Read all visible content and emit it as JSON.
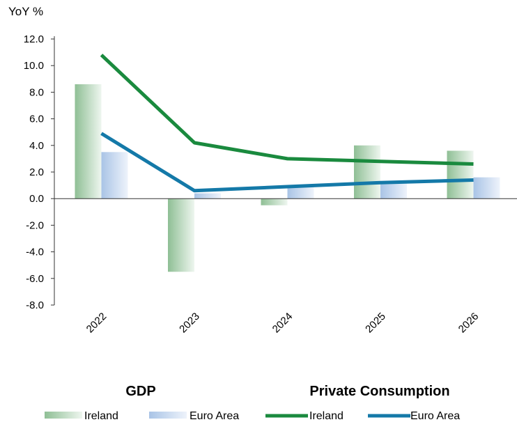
{
  "chart_data": {
    "type": "bar",
    "ylabel": "YoY %",
    "categories": [
      "2022",
      "2023",
      "2024",
      "2025",
      "2026"
    ],
    "ylim": [
      -8.0,
      12.0
    ],
    "yticks": [
      "12.0",
      "10.0",
      "8.0",
      "6.0",
      "4.0",
      "2.0",
      "0.0",
      "-2.0",
      "-4.0",
      "-6.0",
      "-8.0"
    ],
    "grid": false,
    "series": [
      {
        "name": "Ireland",
        "group": "GDP",
        "kind": "bar",
        "color": "#8fbf95",
        "values": [
          8.6,
          -5.5,
          -0.5,
          4.0,
          3.6
        ]
      },
      {
        "name": "Euro Area",
        "group": "GDP",
        "kind": "bar",
        "color": "#a9c4e6",
        "values": [
          3.5,
          0.4,
          0.9,
          1.2,
          1.6
        ]
      },
      {
        "name": "Ireland",
        "group": "Private Consumption",
        "kind": "line",
        "color": "#1a8a3e",
        "values": [
          10.8,
          4.2,
          3.0,
          2.8,
          2.6
        ]
      },
      {
        "name": "Euro Area",
        "group": "Private Consumption",
        "kind": "line",
        "color": "#1479a8",
        "values": [
          4.9,
          0.6,
          0.9,
          1.2,
          1.4
        ]
      }
    ],
    "legend": {
      "placement": "bottom",
      "group_titles": [
        "GDP",
        "Private Consumption"
      ]
    }
  }
}
